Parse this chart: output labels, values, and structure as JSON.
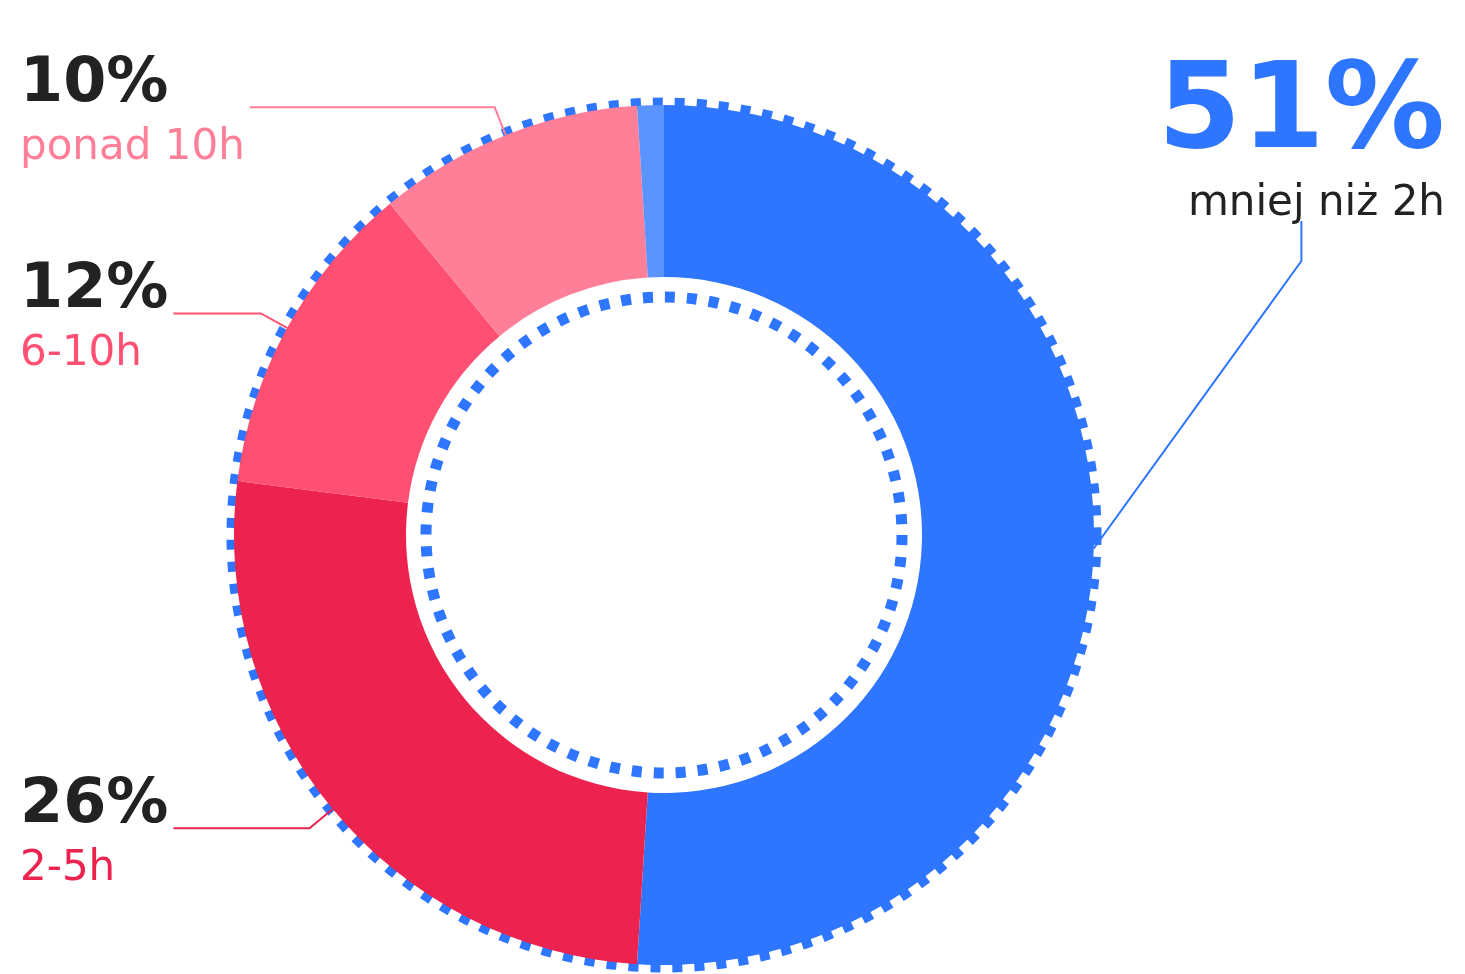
{
  "chart_data": {
    "type": "donut",
    "categories": [
      "mniej niż 2h",
      "2-5h",
      "6-10h",
      "ponad 10h",
      null
    ],
    "values": [
      51,
      26,
      12,
      10,
      1
    ],
    "colors": [
      "#2e75ff",
      "#ec234e",
      "#ff5073",
      "#ff7f98",
      "#5b93ff"
    ],
    "value_labels": [
      "51%",
      "26%",
      "12%",
      "10%",
      null
    ],
    "legend": false
  }
}
